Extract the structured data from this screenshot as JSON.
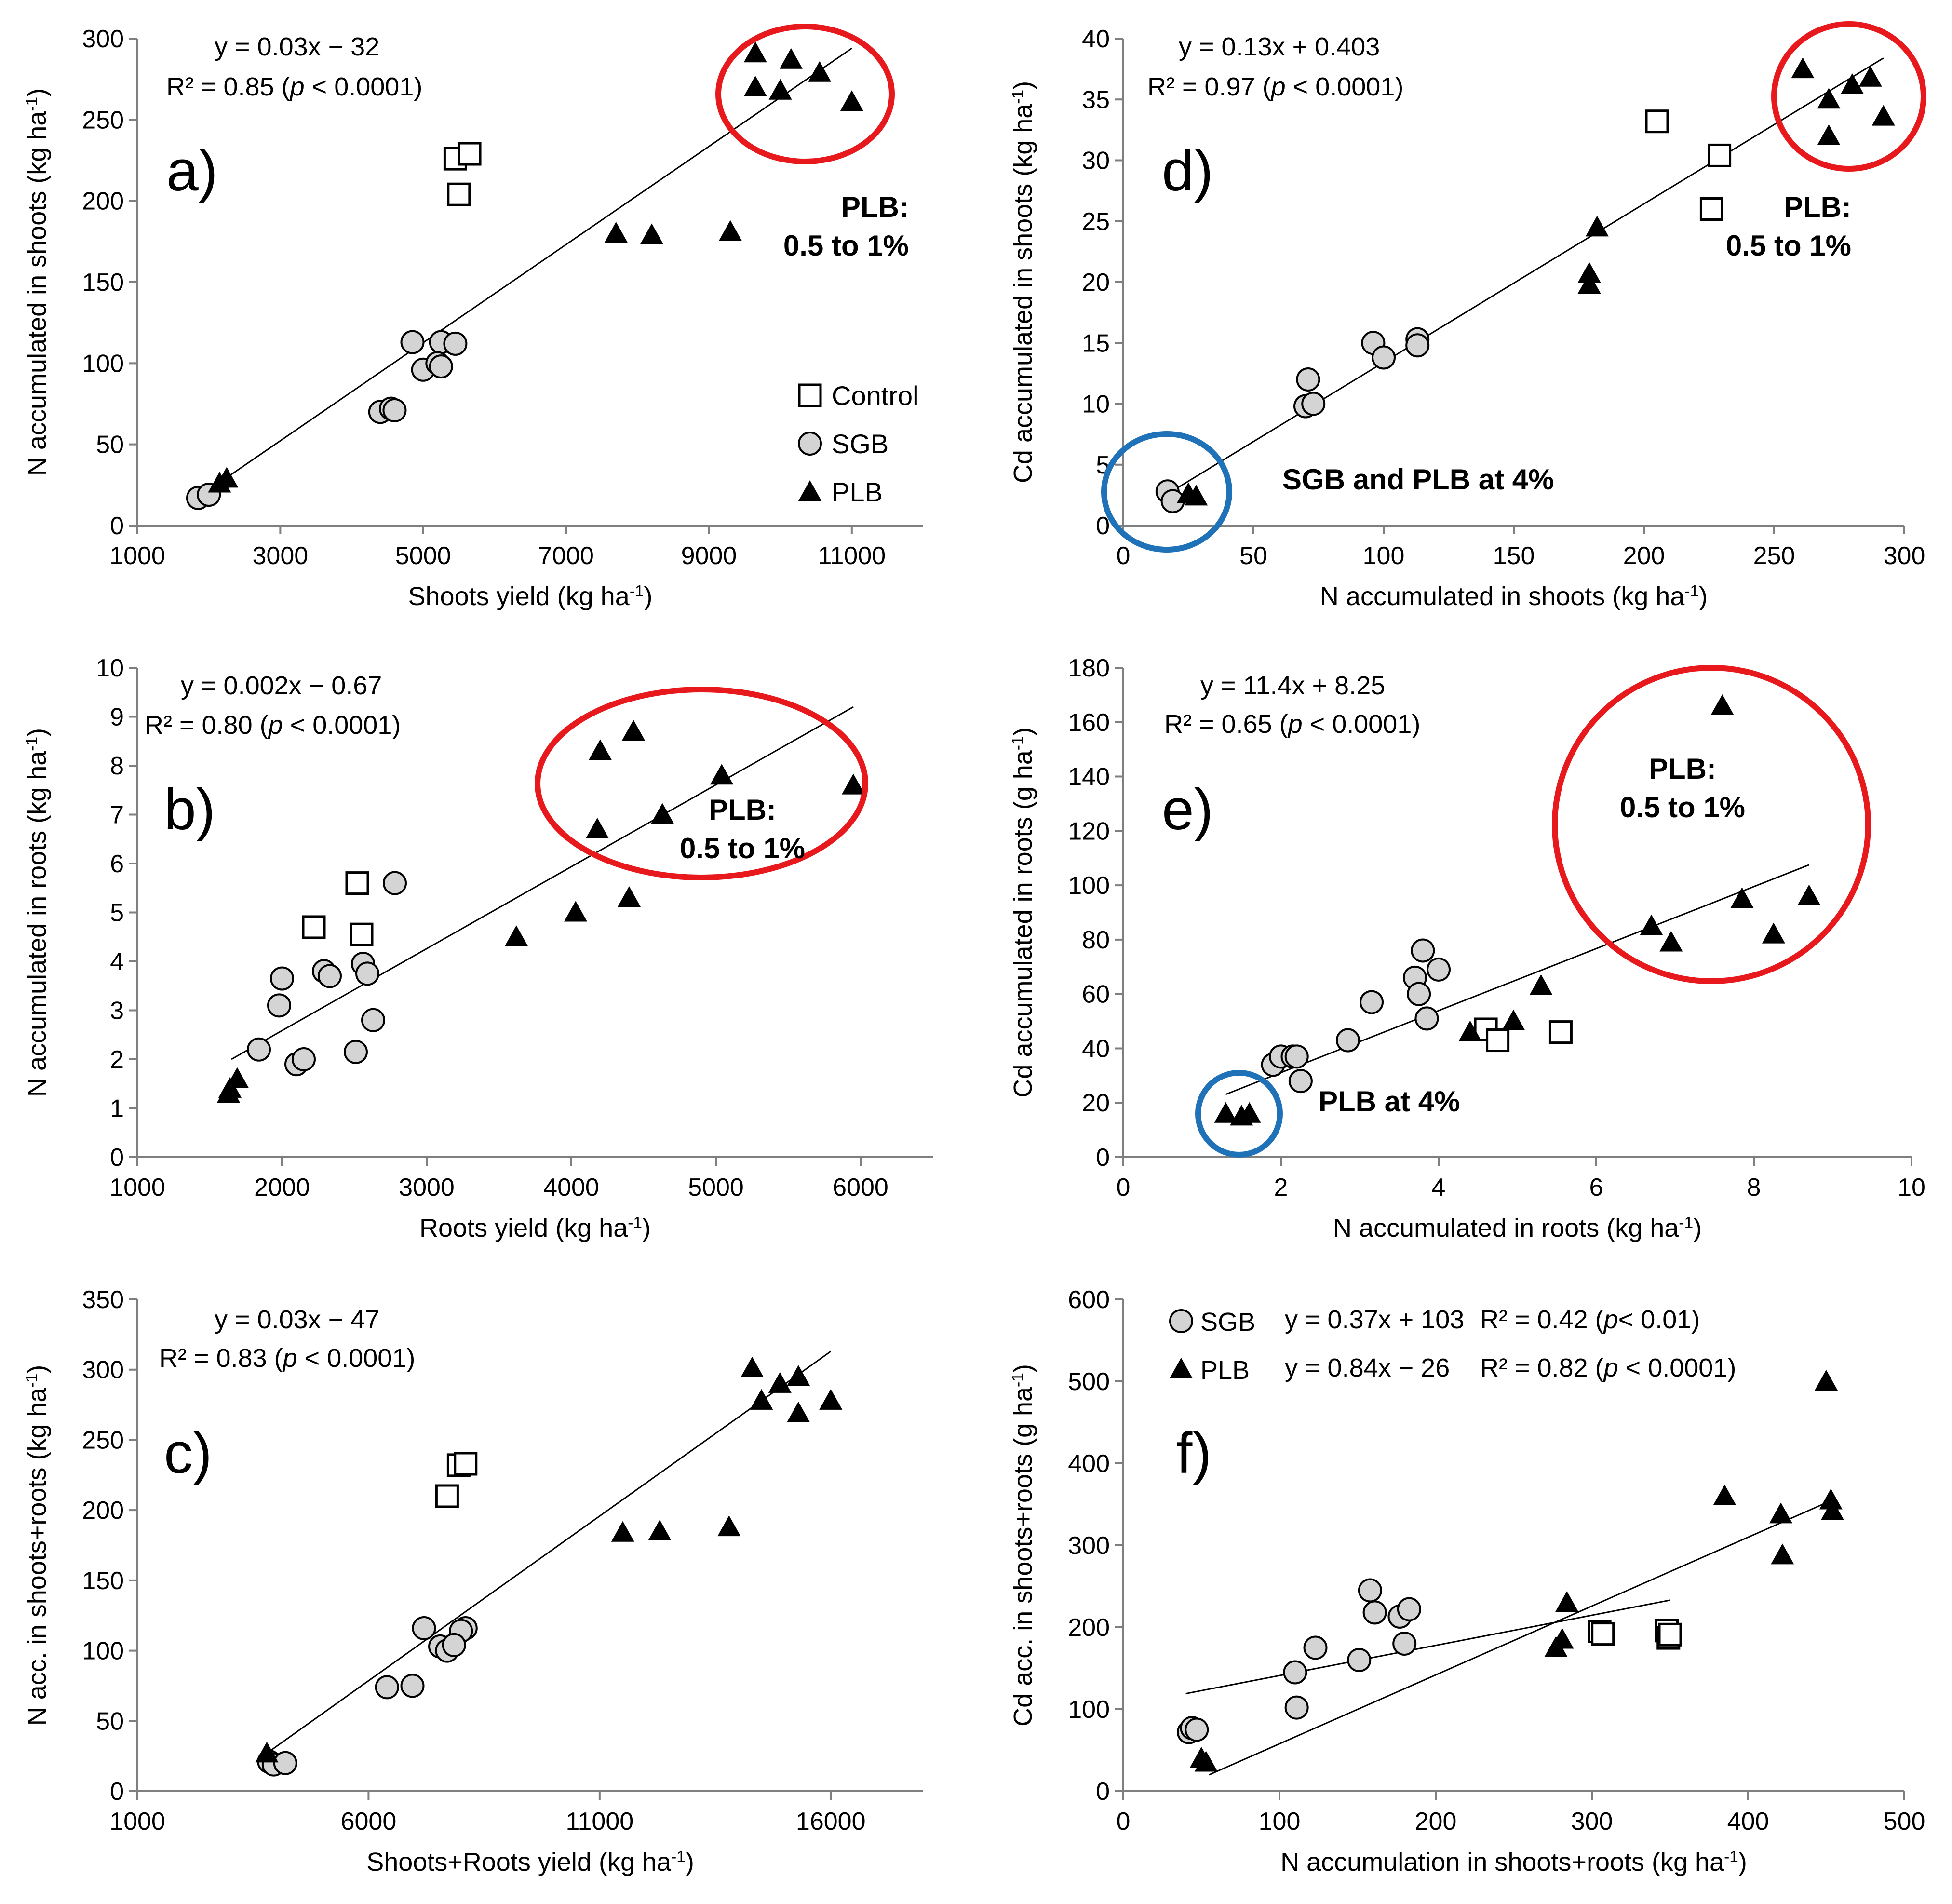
{
  "colors": {
    "red": "#e8191c",
    "blue": "#1f72b8",
    "sgb_fill": "#d4d4d4",
    "black": "#000000"
  },
  "legend": {
    "control": "Control",
    "sgb": "SGB",
    "plb": "PLB"
  },
  "chart_data": [
    {
      "id": "a",
      "type": "scatter",
      "panel_label": "a)",
      "xlabel": {
        "main": "Shoots yield (kg ha",
        "sup": "-1",
        "close": ")"
      },
      "ylabel": {
        "main": "N accumulated in shoots (kg ha",
        "sup": "-1",
        "close": ")"
      },
      "xlim": [
        1000,
        12000
      ],
      "ylim": [
        0,
        300
      ],
      "xticks": [
        1000,
        3000,
        5000,
        7000,
        9000,
        11000
      ],
      "yticks": [
        0,
        50,
        100,
        150,
        200,
        250,
        300
      ],
      "equation": "y = 0.03x − 32",
      "r2": {
        "pre": "R² = 0.85 (",
        "p": "p",
        "post": " < 0.0001)"
      },
      "fit": [
        [
          2100,
          25
        ],
        [
          11000,
          294
        ]
      ],
      "series": [
        {
          "name": "Control",
          "marker": "square",
          "points": [
            [
              5450,
              226
            ],
            [
              5650,
              229
            ],
            [
              5500,
              204
            ]
          ]
        },
        {
          "name": "SGB",
          "marker": "circle",
          "points": [
            [
              1850,
              17
            ],
            [
              2000,
              19
            ],
            [
              4850,
              113
            ],
            [
              5250,
              113
            ],
            [
              5450,
              112
            ],
            [
              5000,
              96
            ],
            [
              5200,
              100
            ],
            [
              5250,
              98
            ],
            [
              4400,
              70
            ],
            [
              4550,
              72
            ],
            [
              4600,
              71
            ]
          ]
        },
        {
          "name": "PLB",
          "marker": "triangle",
          "points": [
            [
              2150,
              26
            ],
            [
              2250,
              29
            ],
            [
              9650,
              291
            ],
            [
              10150,
              287
            ],
            [
              10550,
              279
            ],
            [
              9650,
              270
            ],
            [
              10000,
              268
            ],
            [
              11000,
              261
            ],
            [
              7700,
              180
            ],
            [
              8200,
              179
            ],
            [
              9300,
              181
            ]
          ]
        }
      ],
      "annotations": [
        {
          "text": "PLB:",
          "text2": "0.5 to 1%",
          "color": "red"
        }
      ]
    },
    {
      "id": "b",
      "type": "scatter",
      "panel_label": "b)",
      "xlabel": {
        "main": "Roots yield (kg ha",
        "sup": "-1",
        "close": ")"
      },
      "ylabel": {
        "main": "N accumulated in roots (kg ha",
        "sup": "-1",
        "close": ")"
      },
      "xlim": [
        1000,
        6500
      ],
      "ylim": [
        0,
        10
      ],
      "xticks": [
        1000,
        2000,
        3000,
        4000,
        5000,
        6000
      ],
      "yticks": [
        0,
        1,
        2,
        3,
        4,
        5,
        6,
        7,
        8,
        9,
        10
      ],
      "equation": "y = 0.002x − 0.67",
      "r2": {
        "pre": "R² = 0.80 (",
        "p": "p",
        "post": " < 0.0001)"
      },
      "fit": [
        [
          1650,
          2.0
        ],
        [
          5950,
          9.2
        ]
      ],
      "series": [
        {
          "name": "Control",
          "marker": "square",
          "points": [
            [
              2520,
              5.6
            ],
            [
              2220,
              4.7
            ],
            [
              2550,
              4.55
            ]
          ]
        },
        {
          "name": "SGB",
          "marker": "circle",
          "points": [
            [
              2780,
              5.6
            ],
            [
              2000,
              3.65
            ],
            [
              1980,
              3.1
            ],
            [
              2290,
              3.8
            ],
            [
              2330,
              3.7
            ],
            [
              2560,
              3.95
            ],
            [
              2590,
              3.75
            ],
            [
              1840,
              2.2
            ],
            [
              2100,
              1.9
            ],
            [
              2150,
              2.0
            ],
            [
              2510,
              2.15
            ],
            [
              2630,
              2.8
            ]
          ]
        },
        {
          "name": "PLB",
          "marker": "triangle",
          "points": [
            [
              1640,
              1.4
            ],
            [
              1690,
              1.6
            ],
            [
              1630,
              1.3
            ],
            [
              4200,
              8.3
            ],
            [
              4430,
              8.7
            ],
            [
              5040,
              7.8
            ],
            [
              5950,
              7.6
            ],
            [
              4180,
              6.7
            ],
            [
              4630,
              7.0
            ],
            [
              4400,
              5.3
            ],
            [
              4030,
              5.0
            ],
            [
              3620,
              4.5
            ]
          ]
        }
      ],
      "annotations": [
        {
          "text": "PLB:",
          "text2": "0.5 to 1%",
          "color": "red"
        }
      ]
    },
    {
      "id": "c",
      "type": "scatter",
      "panel_label": "c)",
      "xlabel": {
        "main": "Shoots+Roots  yield (kg ha",
        "sup": "-1",
        "close": ")"
      },
      "ylabel": {
        "main": "N acc. in shoots+roots (kg ha",
        "sup": "-1",
        "close": ")"
      },
      "xlim": [
        1000,
        18000
      ],
      "ylim": [
        0,
        350
      ],
      "xticks": [
        1000,
        6000,
        11000,
        16000
      ],
      "yticks": [
        0,
        50,
        100,
        150,
        200,
        250,
        300,
        350
      ],
      "equation": "y = 0.03x − 47",
      "r2": {
        "pre": "R² = 0.83 (",
        "p": "p",
        "post": " < 0.0001)"
      },
      "fit": [
        [
          3800,
          27
        ],
        [
          16000,
          313
        ]
      ],
      "series": [
        {
          "name": "Control",
          "marker": "square",
          "points": [
            [
              7950,
              232
            ],
            [
              8100,
              233
            ],
            [
              7700,
              210
            ]
          ]
        },
        {
          "name": "SGB",
          "marker": "circle",
          "points": [
            [
              3850,
              21
            ],
            [
              3950,
              19
            ],
            [
              4200,
              20
            ],
            [
              7200,
              116
            ],
            [
              8100,
              116
            ],
            [
              8000,
              114
            ],
            [
              7550,
              103
            ],
            [
              7700,
              100
            ],
            [
              7850,
              104
            ],
            [
              6400,
              74
            ],
            [
              6950,
              75
            ]
          ]
        },
        {
          "name": "PLB",
          "marker": "triangle",
          "points": [
            [
              3800,
              27
            ],
            [
              14300,
              301
            ],
            [
              14900,
              290
            ],
            [
              15300,
              295
            ],
            [
              14500,
              278
            ],
            [
              15300,
              269
            ],
            [
              16000,
              278
            ],
            [
              11500,
              184
            ],
            [
              12300,
              185
            ],
            [
              13800,
              188
            ]
          ]
        }
      ]
    },
    {
      "id": "d",
      "type": "scatter",
      "panel_label": "d)",
      "xlabel": {
        "main": "N accumulated in shoots (kg ha",
        "sup": "-1",
        "close": ")"
      },
      "ylabel": {
        "main": "Cd accumulated in shoots (kg ha",
        "sup": "-1",
        "close": ")"
      },
      "xlim": [
        0,
        300
      ],
      "ylim": [
        0,
        40
      ],
      "xticks": [
        0,
        50,
        100,
        150,
        200,
        250,
        300
      ],
      "yticks": [
        0,
        5,
        10,
        15,
        20,
        25,
        30,
        35,
        40
      ],
      "equation": "y = 0.13x + 0.403",
      "r2": {
        "pre": "R² = 0.97 (",
        "p": "p",
        "post": " < 0.0001)"
      },
      "fit": [
        [
          17,
          2.6
        ],
        [
          292,
          38.4
        ]
      ],
      "series": [
        {
          "name": "Control",
          "marker": "square",
          "points": [
            [
              205,
              33.2
            ],
            [
              229,
              30.4
            ],
            [
              226,
              26.0
            ]
          ]
        },
        {
          "name": "SGB",
          "marker": "circle",
          "points": [
            [
              17,
              2.8
            ],
            [
              19,
              2.0
            ],
            [
              71,
              12.0
            ],
            [
              70,
              9.8
            ],
            [
              73,
              10.0
            ],
            [
              96,
              15.0
            ],
            [
              100,
              13.8
            ],
            [
              113,
              15.3
            ],
            [
              113,
              14.8
            ]
          ]
        },
        {
          "name": "PLB",
          "marker": "triangle",
          "points": [
            [
              25,
              2.6
            ],
            [
              28,
              2.4
            ],
            [
              261,
              37.5
            ],
            [
              271,
              35.0
            ],
            [
              280,
              36.2
            ],
            [
              287,
              36.8
            ],
            [
              271,
              32.0
            ],
            [
              292,
              33.6
            ],
            [
              182,
              24.5
            ],
            [
              179,
              20.7
            ],
            [
              179,
              19.8
            ]
          ]
        }
      ],
      "annotations": [
        {
          "text": "PLB:",
          "text2": "0.5 to 1%",
          "color": "red"
        },
        {
          "text": "SGB and PLB at 4%",
          "color": "blue"
        }
      ]
    },
    {
      "id": "e",
      "type": "scatter",
      "panel_label": "e)",
      "xlabel": {
        "main": "N accumulated in roots (kg ha",
        "sup": "-1",
        "close": ")"
      },
      "ylabel": {
        "main": "Cd accumulated in roots (g ha",
        "sup": "-1",
        "close": ")"
      },
      "xlim": [
        0,
        10
      ],
      "ylim": [
        0,
        180
      ],
      "xticks": [
        0,
        2,
        4,
        6,
        8,
        10
      ],
      "yticks": [
        0,
        20,
        40,
        60,
        80,
        100,
        120,
        140,
        160,
        180
      ],
      "equation": "y = 11.4x + 8.25",
      "r2": {
        "pre": "R² = 0.65 (",
        "p": "p",
        "post": " < 0.0001)"
      },
      "fit": [
        [
          1.3,
          23.1
        ],
        [
          8.7,
          107.5
        ]
      ],
      "series": [
        {
          "name": "Control",
          "marker": "square",
          "points": [
            [
              4.6,
              47
            ],
            [
              4.75,
              43
            ],
            [
              5.55,
              46
            ]
          ]
        },
        {
          "name": "SGB",
          "marker": "circle",
          "points": [
            [
              1.9,
              34
            ],
            [
              2.0,
              37
            ],
            [
              2.15,
              37
            ],
            [
              2.2,
              37
            ],
            [
              2.25,
              28
            ],
            [
              2.85,
              43
            ],
            [
              3.15,
              57
            ],
            [
              3.7,
              66
            ],
            [
              3.75,
              60
            ],
            [
              3.8,
              76
            ],
            [
              3.85,
              51
            ],
            [
              4.0,
              69
            ]
          ]
        },
        {
          "name": "PLB",
          "marker": "triangle",
          "points": [
            [
              1.3,
              16
            ],
            [
              1.5,
              15
            ],
            [
              1.6,
              16
            ],
            [
              7.6,
              166
            ],
            [
              6.7,
              85
            ],
            [
              6.95,
              79
            ],
            [
              7.85,
              95
            ],
            [
              8.25,
              82
            ],
            [
              8.7,
              96
            ],
            [
              5.3,
              63
            ],
            [
              4.95,
              50
            ],
            [
              4.4,
              46
            ]
          ]
        }
      ],
      "annotations": [
        {
          "text": "PLB:",
          "text2": "0.5 to 1%",
          "color": "red"
        },
        {
          "text": "PLB at 4%",
          "color": "blue"
        }
      ]
    },
    {
      "id": "f",
      "type": "scatter",
      "panel_label": "f)",
      "xlabel": {
        "main": "N accumulation in shoots+roots  (kg ha",
        "sup": "-1",
        "close": ")"
      },
      "ylabel": {
        "main": "Cd acc. in shoots+roots  (g ha",
        "sup": "-1",
        "close": ")"
      },
      "xlim": [
        0,
        500
      ],
      "ylim": [
        0,
        600
      ],
      "xticks": [
        0,
        100,
        200,
        300,
        400,
        500
      ],
      "yticks": [
        0,
        100,
        200,
        300,
        400,
        500,
        600
      ],
      "legend_rows": [
        {
          "name": "SGB",
          "marker": "circle",
          "eq": "y = 0.37x + 103",
          "r2": {
            "pre": "R² = 0.42 (",
            "p": "p",
            "post": "< 0.01)"
          }
        },
        {
          "name": "PLB",
          "marker": "triangle",
          "eq": "y = 0.84x − 26",
          "r2": {
            "pre": "R² = 0.82 (",
            "p": "p",
            "post": " < 0.0001)"
          }
        }
      ],
      "fits": [
        [
          [
            40,
            119
          ],
          [
            350,
            233
          ]
        ],
        [
          [
            55,
            20
          ],
          [
            455,
            356
          ]
        ]
      ],
      "series": [
        {
          "name": "Control",
          "marker": "square",
          "points": [
            [
              305,
              195
            ],
            [
              307,
              192
            ],
            [
              348,
              196
            ],
            [
              349,
              187
            ],
            [
              350,
              191
            ]
          ]
        },
        {
          "name": "SGB",
          "marker": "circle",
          "points": [
            [
              42,
              72
            ],
            [
              44,
              77
            ],
            [
              47,
              75
            ],
            [
              110,
              145
            ],
            [
              111,
              102
            ],
            [
              123,
              175
            ],
            [
              151,
              160
            ],
            [
              158,
              245
            ],
            [
              161,
              218
            ],
            [
              177,
              213
            ],
            [
              180,
              180
            ],
            [
              183,
              222
            ]
          ]
        },
        {
          "name": "PLB",
          "marker": "triangle",
          "points": [
            [
              50,
              40
            ],
            [
              53,
              35
            ],
            [
              277,
              175
            ],
            [
              281,
              185
            ],
            [
              284,
              230
            ],
            [
              385,
              360
            ],
            [
              421,
              338
            ],
            [
              422,
              288
            ],
            [
              450,
              500
            ],
            [
              453,
              355
            ],
            [
              454,
              342
            ]
          ]
        }
      ]
    }
  ]
}
